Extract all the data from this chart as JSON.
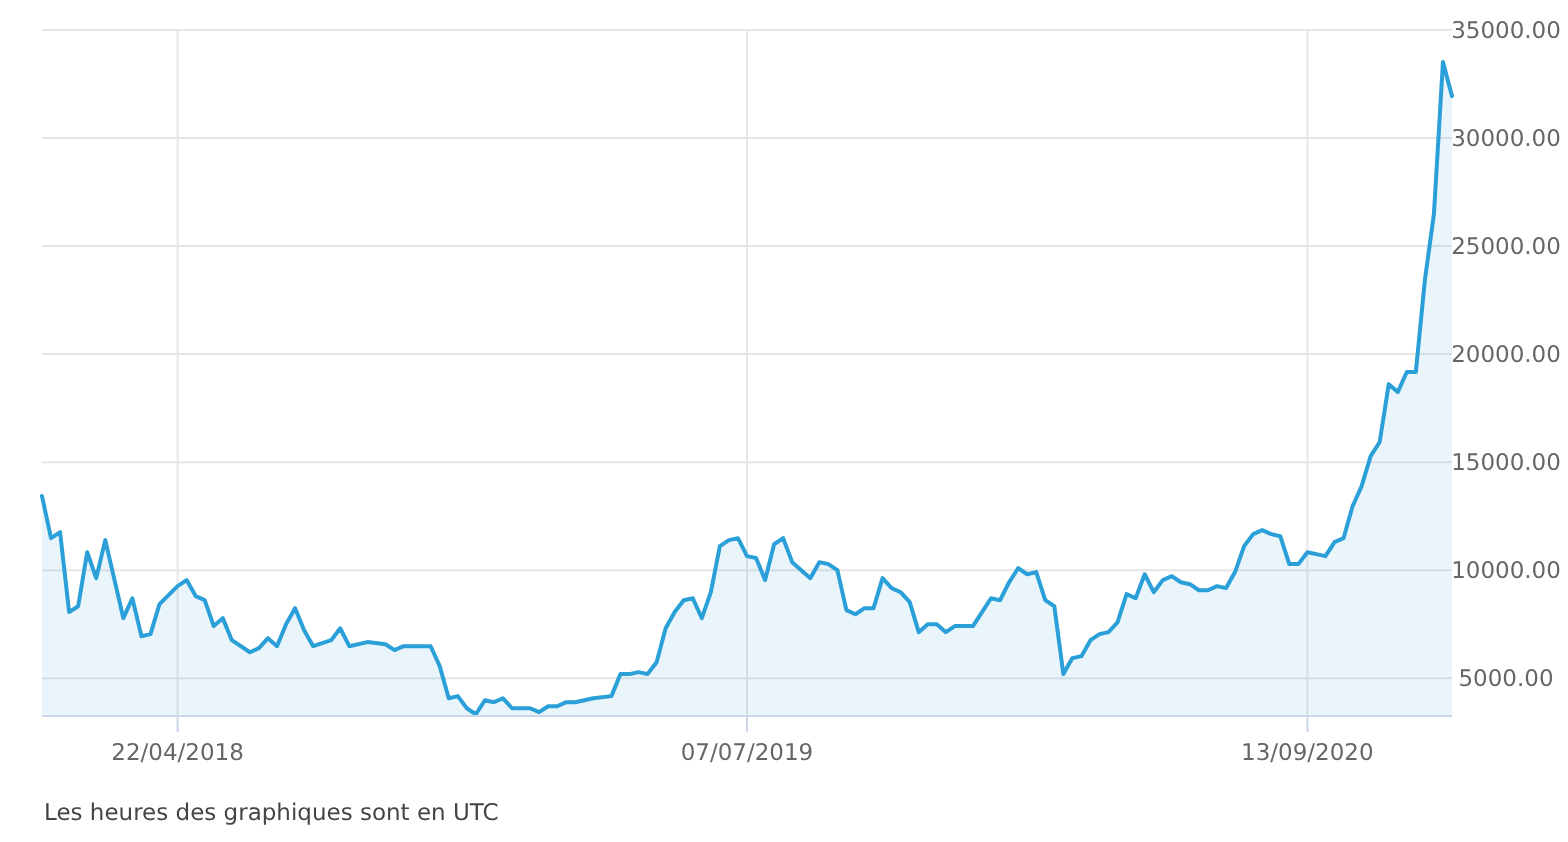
{
  "chart_data": {
    "type": "area",
    "x": [
      "2018-01-07",
      "2018-01-14",
      "2018-01-21",
      "2018-01-28",
      "2018-02-04",
      "2018-02-11",
      "2018-02-18",
      "2018-02-25",
      "2018-03-11",
      "2018-03-18",
      "2018-03-25",
      "2018-04-01",
      "2018-04-08",
      "2018-04-22",
      "2018-04-29",
      "2018-05-06",
      "2018-05-13",
      "2018-05-20",
      "2018-05-27",
      "2018-06-03",
      "2018-06-17",
      "2018-06-24",
      "2018-07-01",
      "2018-07-08",
      "2018-07-15",
      "2018-07-22",
      "2018-07-29",
      "2018-08-05",
      "2018-08-19",
      "2018-08-26",
      "2018-09-02",
      "2018-09-16",
      "2018-09-30",
      "2018-10-07",
      "2018-10-14",
      "2018-11-04",
      "2018-11-11",
      "2018-11-18",
      "2018-11-25",
      "2018-12-02",
      "2018-12-09",
      "2018-12-16",
      "2018-12-23",
      "2018-12-30",
      "2019-01-06",
      "2019-01-20",
      "2019-01-27",
      "2019-02-03",
      "2019-02-10",
      "2019-02-17",
      "2019-02-24",
      "2019-03-03",
      "2019-03-10",
      "2019-03-24",
      "2019-03-31",
      "2019-04-07",
      "2019-04-14",
      "2019-04-21",
      "2019-04-28",
      "2019-05-05",
      "2019-05-12",
      "2019-05-19",
      "2019-05-26",
      "2019-06-02",
      "2019-06-09",
      "2019-06-16",
      "2019-06-23",
      "2019-06-30",
      "2019-07-07",
      "2019-07-14",
      "2019-07-21",
      "2019-07-28",
      "2019-08-04",
      "2019-08-11",
      "2019-08-25",
      "2019-09-01",
      "2019-09-08",
      "2019-09-15",
      "2019-09-22",
      "2019-09-29",
      "2019-10-06",
      "2019-10-13",
      "2019-10-20",
      "2019-10-27",
      "2019-11-03",
      "2019-11-10",
      "2019-11-17",
      "2019-11-24",
      "2019-12-01",
      "2019-12-08",
      "2019-12-15",
      "2019-12-29",
      "2020-01-05",
      "2020-01-12",
      "2020-01-19",
      "2020-01-26",
      "2020-02-02",
      "2020-02-09",
      "2020-02-16",
      "2020-02-23",
      "2020-03-01",
      "2020-03-08",
      "2020-03-15",
      "2020-03-22",
      "2020-03-29",
      "2020-04-05",
      "2020-04-12",
      "2020-04-19",
      "2020-04-26",
      "2020-05-03",
      "2020-05-10",
      "2020-05-17",
      "2020-05-24",
      "2020-05-31",
      "2020-06-07",
      "2020-06-14",
      "2020-06-21",
      "2020-06-28",
      "2020-07-05",
      "2020-07-12",
      "2020-07-19",
      "2020-07-26",
      "2020-08-02",
      "2020-08-09",
      "2020-08-16",
      "2020-08-23",
      "2020-08-30",
      "2020-09-06",
      "2020-09-13",
      "2020-09-20",
      "2020-09-27",
      "2020-10-04",
      "2020-10-11",
      "2020-10-18",
      "2020-10-25",
      "2020-11-01",
      "2020-11-08",
      "2020-11-15",
      "2020-11-22",
      "2020-11-29",
      "2020-12-06",
      "2020-12-13",
      "2020-12-20",
      "2020-12-27",
      "2021-01-03"
    ],
    "series": [
      {
        "color": "#2a9fd8",
        "values": [
          13430,
          11480,
          11760,
          8060,
          8330,
          10830,
          9630,
          11390,
          7780,
          8700,
          6940,
          7040,
          8430,
          9260,
          9540,
          8800,
          8610,
          7410,
          7780,
          6760,
          6200,
          6390,
          6850,
          6480,
          7500,
          8240,
          7220,
          6480,
          6760,
          7310,
          6480,
          6670,
          6570,
          6300,
          6480,
          6480,
          5560,
          4070,
          4170,
          3610,
          3330,
          3980,
          3890,
          4070,
          3610,
          3610,
          3430,
          3700,
          3700,
          3890,
          3890,
          3980,
          4070,
          4170,
          5190,
          5190,
          5280,
          5190,
          5740,
          7310,
          8060,
          8610,
          8700,
          7780,
          8980,
          11110,
          11390,
          11480,
          10650,
          10560,
          9540,
          11200,
          11480,
          10370,
          9630,
          10370,
          10280,
          10000,
          8150,
          7960,
          8240,
          8240,
          9630,
          9170,
          8980,
          8520,
          7130,
          7500,
          7500,
          7130,
          7410,
          7410,
          8060,
          8700,
          8610,
          9440,
          10090,
          9810,
          9910,
          8610,
          8330,
          5190,
          5930,
          6020,
          6760,
          7040,
          7130,
          7590,
          8890,
          8700,
          9810,
          8980,
          9540,
          9720,
          9440,
          9350,
          9070,
          9070,
          9260,
          9170,
          9910,
          11110,
          11670,
          11850,
          11670,
          11570,
          10280,
          10280,
          10830,
          10740,
          10650,
          11300,
          11480,
          12960,
          13890,
          15280,
          15930,
          18610,
          18240,
          19170,
          19170,
          23430,
          26480,
          33520,
          31940
        ]
      }
    ],
    "xlim": [
      "2018-01-07",
      "2021-01-03"
    ],
    "xticks": [
      {
        "value": "2018-04-22",
        "label": "22/04/2018"
      },
      {
        "value": "2019-07-07",
        "label": "07/07/2019"
      },
      {
        "value": "2020-09-13",
        "label": "13/09/2020"
      }
    ],
    "ylim": [
      3250,
      35000
    ],
    "yticks": [
      {
        "value": 5000,
        "label": "5000.00"
      },
      {
        "value": 10000,
        "label": "10000.00"
      },
      {
        "value": 15000,
        "label": "15000.00"
      },
      {
        "value": 20000,
        "label": "20000.00"
      },
      {
        "value": 25000,
        "label": "25000.00"
      },
      {
        "value": 30000,
        "label": "30000.00"
      },
      {
        "value": 35000,
        "label": "35000.00"
      }
    ],
    "grid": true,
    "annotations": [
      "Les heures des graphiques sont en UTC"
    ]
  }
}
